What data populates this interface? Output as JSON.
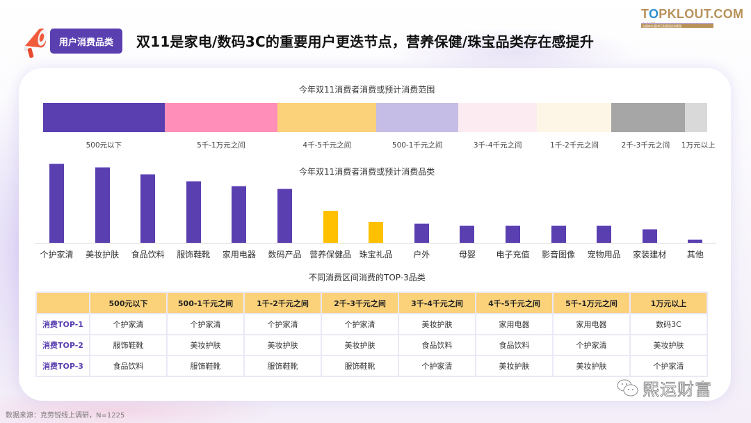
{
  "header": {
    "tag": "用户消费品类",
    "title": "双11是家电/数码3C的重要用户更迭节点，营养保健/珠宝品类存在感提升",
    "logo_main_left": "T",
    "logo_main_o": "O",
    "logo_main_right": "PKLOUT.COM",
    "logo_sub_bar": "自媒体价值排行及版权经济管理",
    "logo_sub_cn": "克劳锐"
  },
  "colors": {
    "accent": "#5a3fb0",
    "highlight": "#ffc000",
    "table_header": "#fbd27a"
  },
  "chart_data": [
    {
      "type": "bar",
      "subtype": "stacked-100",
      "title": "今年双11消费者消费或预计消费范围",
      "categories": [
        "500元以下",
        "5千-1万元之间",
        "4千-5千元之间",
        "500-1千元之间",
        "3千-4千元之间",
        "1千-2千元之间",
        "2千-3千元之间",
        "1万元以上"
      ],
      "values": [
        18.3,
        17.0,
        14.9,
        12.3,
        11.9,
        11.2,
        11.1,
        3.3
      ],
      "colors": [
        "#5a3fb0",
        "#ff8fb8",
        "#fbd27a",
        "#c6bde6",
        "#fdebf2",
        "#fdf6e6",
        "#a6a6a6",
        "#d9d9d9"
      ],
      "xlabel": "",
      "ylabel": "",
      "legend": "labels below segments"
    },
    {
      "type": "bar",
      "title": "今年双11消费者消费或预计消费品类",
      "categories": [
        "个护家清",
        "美妆护肤",
        "食品饮料",
        "服饰鞋靴",
        "家用电器",
        "数码产品",
        "营养保健品",
        "珠宝礼品",
        "户外",
        "母婴",
        "电子充值",
        "影音图像",
        "宠物用品",
        "家装建材",
        "其他"
      ],
      "values": [
        114,
        109,
        99,
        89,
        82,
        78,
        46,
        30,
        28,
        25,
        25,
        25,
        25,
        20,
        5
      ],
      "colors": [
        "#5a3fb0",
        "#5a3fb0",
        "#5a3fb0",
        "#5a3fb0",
        "#5a3fb0",
        "#5a3fb0",
        "#ffc000",
        "#ffc000",
        "#5a3fb0",
        "#5a3fb0",
        "#5a3fb0",
        "#5a3fb0",
        "#5a3fb0",
        "#5a3fb0",
        "#5a3fb0"
      ],
      "xlabel": "",
      "ylabel": "",
      "grid": false,
      "value_unit": "relative bar height (px)"
    },
    {
      "type": "table",
      "title": "不同消费区间消费的TOP-3品类",
      "columns": [
        "",
        "500元以下",
        "500-1千元之间",
        "1千-2千元之间",
        "2千-3千元之间",
        "3千-4千元之间",
        "4千-5千元之间",
        "5千-1万元之间",
        "1万元以上"
      ],
      "rows": [
        [
          "消费TOP-1",
          "个护家清",
          "个护家清",
          "个护家清",
          "个护家清",
          "美妆护肤",
          "家用电器",
          "家用电器",
          "数码3C"
        ],
        [
          "消费TOP-2",
          "服饰鞋靴",
          "美妆护肤",
          "美妆护肤",
          "美妆护肤",
          "食品饮料",
          "食品饮料",
          "个护家清",
          "美妆护肤"
        ],
        [
          "消费TOP-3",
          "食品饮料",
          "服饰鞋靴",
          "服饰鞋靴",
          "服饰鞋靴",
          "个护家清",
          "美妆护肤",
          "美妆护肤",
          "个护家清"
        ]
      ]
    }
  ],
  "footer": {
    "source": "数据来源：克劳锐线上调研，N=1225",
    "watermark": "熙运财富"
  }
}
